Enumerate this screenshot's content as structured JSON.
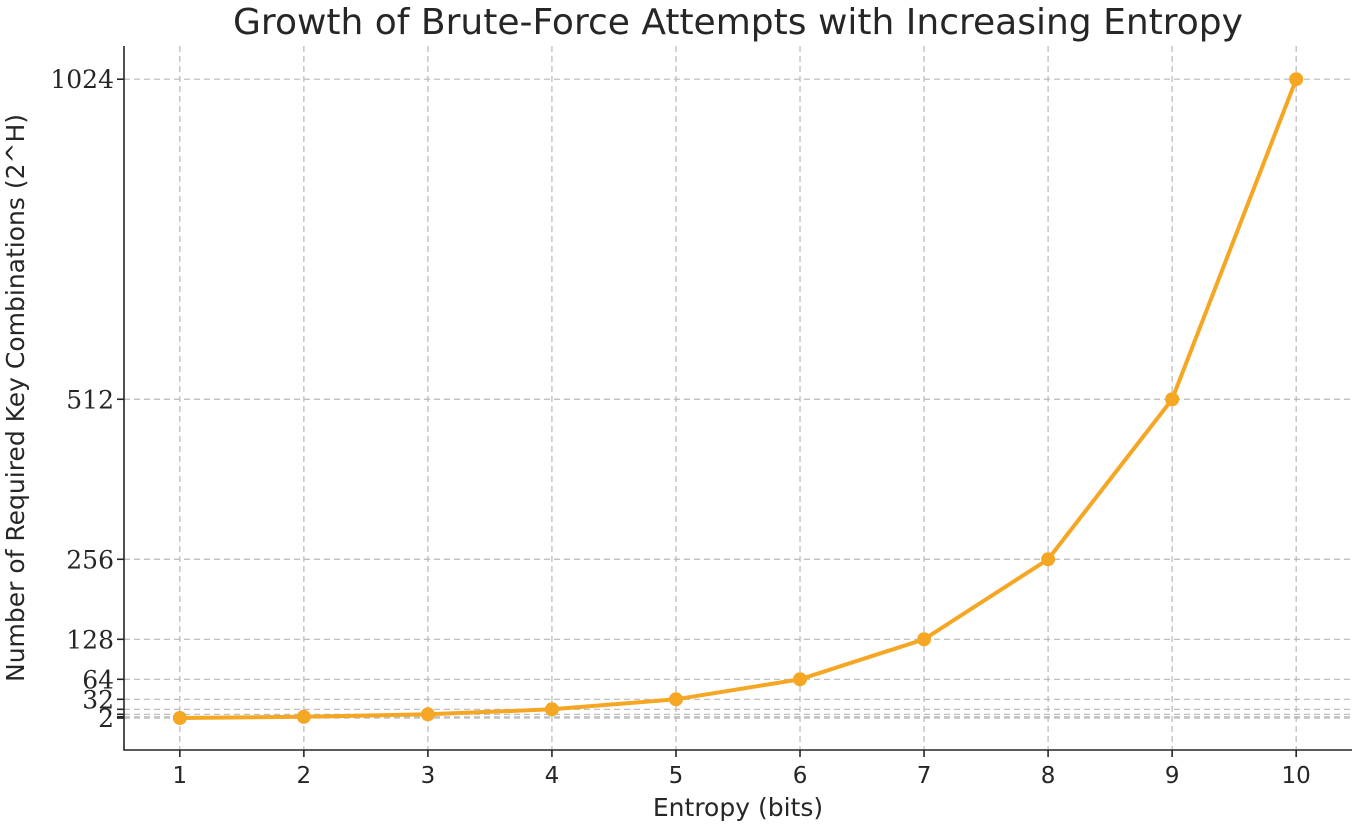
{
  "chart_data": {
    "type": "line",
    "title": "Growth of Brute-Force Attempts with Increasing Entropy",
    "xlabel": "Entropy (bits)",
    "ylabel": "Number of Required Key Combinations (2^H)",
    "x": [
      1,
      2,
      3,
      4,
      5,
      6,
      7,
      8,
      9,
      10
    ],
    "series": [
      {
        "values": [
          2,
          4,
          8,
          16,
          32,
          64,
          128,
          256,
          512,
          1024
        ],
        "color": "#F5A623"
      }
    ],
    "xticks": [
      "1",
      "2",
      "3",
      "4",
      "5",
      "6",
      "7",
      "8",
      "9",
      "10"
    ],
    "yticks": [
      2,
      4,
      8,
      16,
      32,
      64,
      128,
      256,
      512,
      1024
    ],
    "yticklabels_visible": [
      {
        "value": 2,
        "label": "2"
      },
      {
        "value": 32,
        "label": "32"
      },
      {
        "value": 64,
        "label": "64"
      },
      {
        "value": 128,
        "label": "128"
      },
      {
        "value": 256,
        "label": "256"
      },
      {
        "value": 512,
        "label": "512"
      },
      {
        "value": 1024,
        "label": "1024"
      }
    ],
    "xlim": [
      0.55,
      10.45
    ],
    "ylim": [
      -49.1,
      1077.1
    ],
    "grid": true,
    "marker": "circle"
  }
}
